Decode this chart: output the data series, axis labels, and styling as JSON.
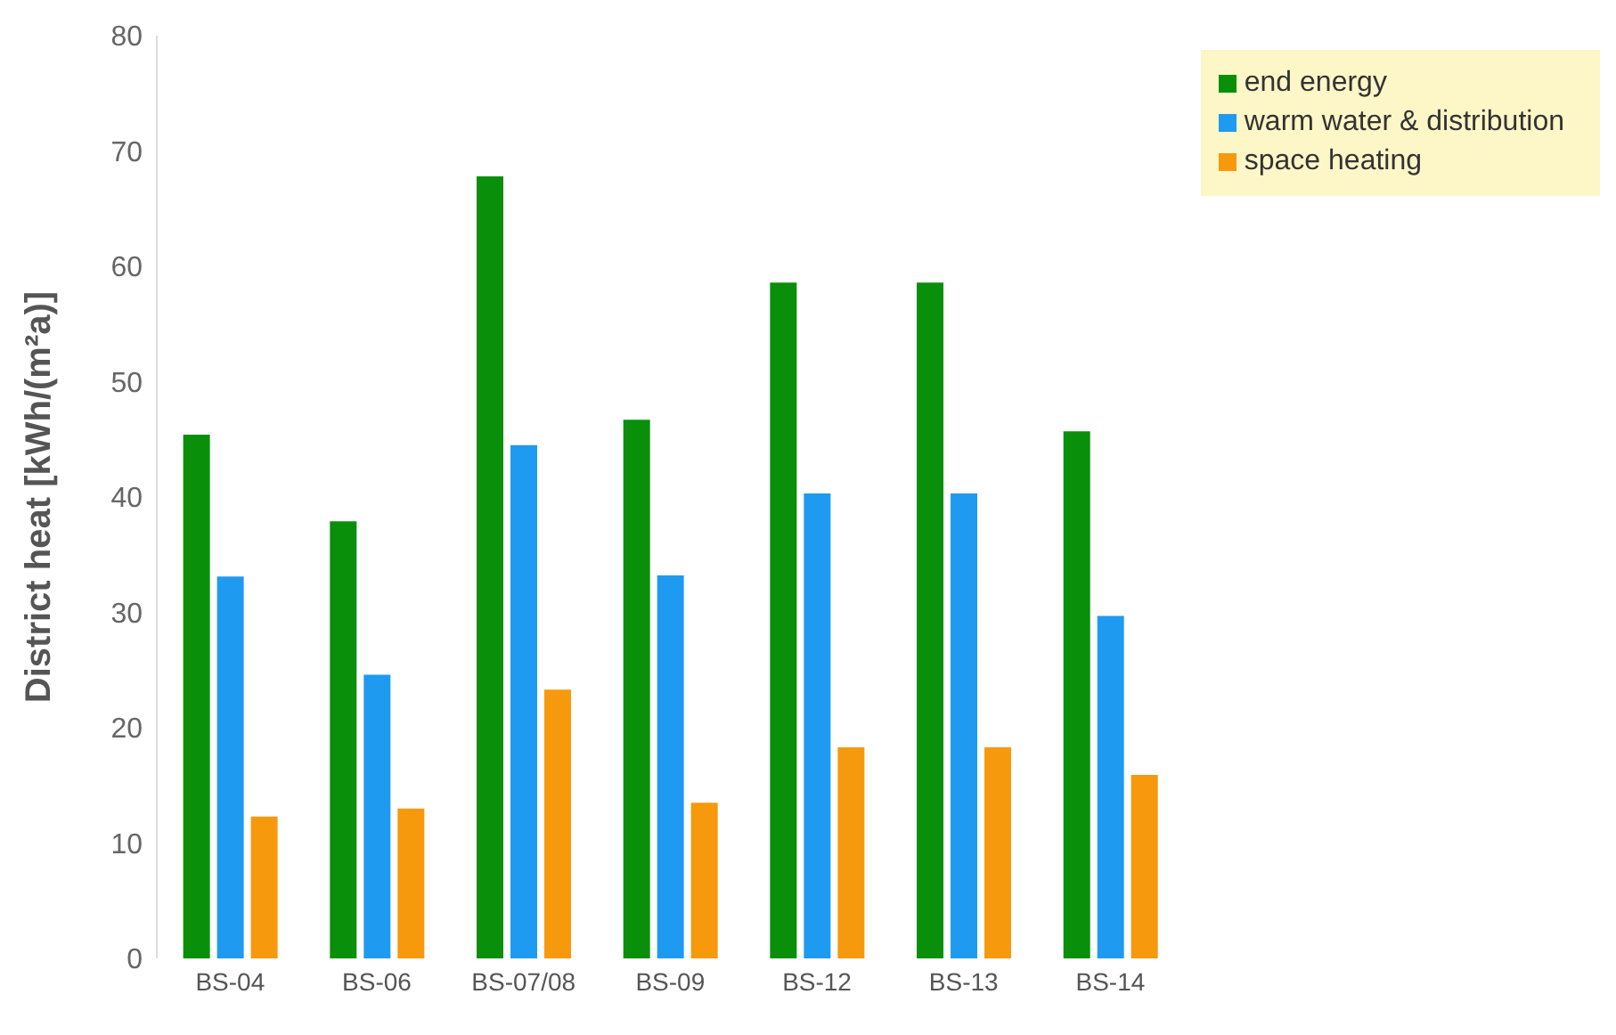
{
  "chart_data": {
    "type": "bar",
    "ylabel": "District heat  [kWh/(m²a)]",
    "categories": [
      "BS-04",
      "BS-06",
      "BS-07/08",
      "BS-09",
      "BS-12",
      "BS-13",
      "BS-14"
    ],
    "series": [
      {
        "name": "end energy",
        "color": "#0a8f0a",
        "values": [
          45.4,
          37.9,
          67.8,
          46.7,
          58.6,
          58.6,
          45.7
        ]
      },
      {
        "name": "warm water & distribution",
        "color": "#1e9bf0",
        "values": [
          33.1,
          24.6,
          44.5,
          33.2,
          40.3,
          40.3,
          29.7
        ]
      },
      {
        "name": "space heating",
        "color": "#f7990c",
        "values": [
          12.3,
          13.0,
          23.3,
          13.5,
          18.3,
          18.3,
          15.9
        ]
      }
    ],
    "ylim": [
      0,
      80
    ],
    "yticks": [
      0,
      10,
      20,
      30,
      40,
      50,
      60,
      70,
      80
    ],
    "grid": false,
    "legend": "top right"
  }
}
